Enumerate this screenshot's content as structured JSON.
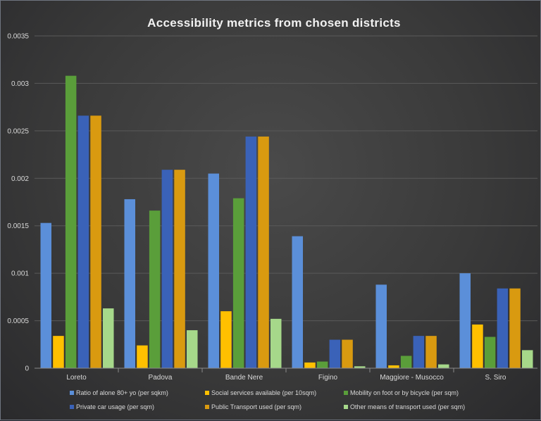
{
  "chart_data": {
    "type": "bar",
    "title": "Accessibility metrics from chosen districts",
    "xlabel": "",
    "ylabel": "",
    "ylim": [
      0,
      0.0035
    ],
    "yticks": [
      "0",
      "0.0005",
      "0.001",
      "0.0015",
      "0.002",
      "0.0025",
      "0.003",
      "0.0035"
    ],
    "ytick_values": [
      0,
      0.0005,
      0.001,
      0.0015,
      0.002,
      0.0025,
      0.003,
      0.0035
    ],
    "grid": true,
    "legend_position": "bottom",
    "categories": [
      "Loreto",
      "Padova",
      "Bande Nere",
      "Figino",
      "Maggiore - Musocco",
      "S. Siro"
    ],
    "series": [
      {
        "name": "Ratio of alone 80+ yo (per sqkm)",
        "color": "#5b8fd9",
        "values": [
          0.00153,
          0.00178,
          0.00205,
          0.00139,
          0.00088,
          0.001
        ]
      },
      {
        "name": "Social services available (per 10sqm)",
        "color": "#ffc000",
        "values": [
          0.00034,
          0.00024,
          0.0006,
          6e-05,
          3e-05,
          0.00046
        ]
      },
      {
        "name": "Mobility on foot or by bicycle (per sqm)",
        "color": "#5a9e3a",
        "values": [
          0.00308,
          0.00166,
          0.00179,
          7e-05,
          0.00013,
          0.00033
        ]
      },
      {
        "name": "Private car usage (per sqm)",
        "color": "#3a62b8",
        "values": [
          0.00266,
          0.00209,
          0.00244,
          0.0003,
          0.00034,
          0.00084
        ]
      },
      {
        "name": "Public Transport used (per sqm)",
        "color": "#d99a10",
        "values": [
          0.00266,
          0.00209,
          0.00244,
          0.0003,
          0.00034,
          0.00084
        ]
      },
      {
        "name": "Other means of transport used (per sqm)",
        "color": "#a6d88a",
        "values": [
          0.00063,
          0.0004,
          0.00052,
          2e-05,
          4e-05,
          0.00019
        ]
      }
    ]
  }
}
